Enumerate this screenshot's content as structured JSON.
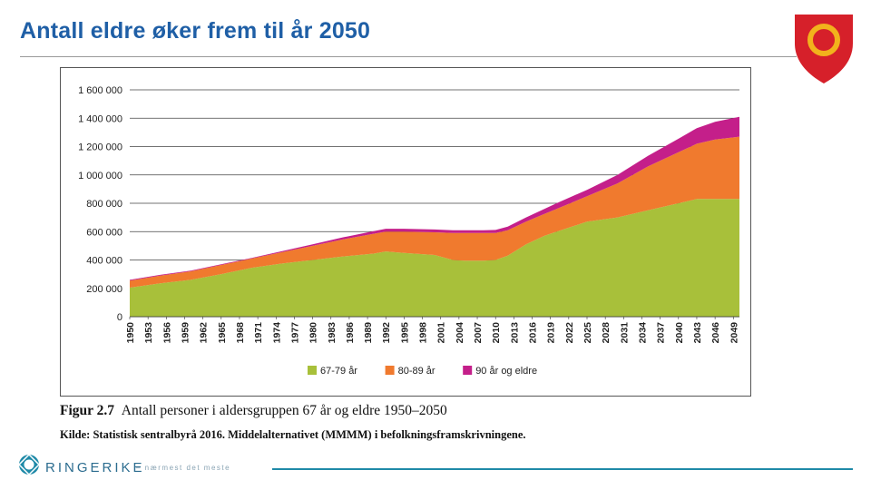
{
  "slide": {
    "title": "Antall eldre øker frem til år 2050",
    "caption_label": "Figur 2.7",
    "caption_text": "Antall personer i aldersgruppen 67 år og eldre 1950–2050",
    "source": "Kilde: Statistisk sentralbyrå 2016. Middelalternativet (MMMM) i befolkningsframskrivningene.",
    "footer_brand": "RINGERIKE",
    "footer_tagline": "– nærmest det meste"
  },
  "colors": {
    "title": "#1f5fa6",
    "crest_red": "#d6202a",
    "crest_gold": "#f2b21c",
    "footer_accent": "#1f8aa8"
  },
  "chart_data": {
    "type": "area",
    "stacked": true,
    "title": "",
    "xlabel": "",
    "ylabel": "",
    "ylim": [
      0,
      1600000
    ],
    "yticks": [
      0,
      200000,
      400000,
      600000,
      800000,
      1000000,
      1200000,
      1400000,
      1600000
    ],
    "ytick_labels": [
      "0",
      "200 000",
      "400 000",
      "600 000",
      "800 000",
      "1 000 000",
      "1 200 000",
      "1 400 000",
      "1 600 000"
    ],
    "grid": true,
    "legend_position": "bottom-center",
    "x_tick_labels": [
      "1950",
      "1953",
      "1956",
      "1959",
      "1962",
      "1965",
      "1968",
      "1971",
      "1974",
      "1977",
      "1980",
      "1983",
      "1986",
      "1989",
      "1992",
      "1995",
      "1998",
      "2001",
      "2004",
      "2007",
      "2010",
      "2013",
      "2016",
      "2019",
      "2022",
      "2025",
      "2028",
      "2031",
      "2034",
      "2037",
      "2040",
      "2043",
      "2046",
      "2049"
    ],
    "x": [
      1950,
      1955,
      1960,
      1965,
      1970,
      1975,
      1980,
      1985,
      1990,
      1992,
      1995,
      2000,
      2003,
      2005,
      2008,
      2010,
      2012,
      2015,
      2018,
      2020,
      2025,
      2030,
      2035,
      2040,
      2043,
      2046,
      2050
    ],
    "series": [
      {
        "name": "67-79 år",
        "color": "#a8c03a",
        "values": [
          205000,
          235000,
          260000,
          300000,
          345000,
          375000,
          400000,
          425000,
          445000,
          460000,
          450000,
          435000,
          400000,
          395000,
          395000,
          400000,
          430000,
          510000,
          570000,
          600000,
          670000,
          700000,
          750000,
          800000,
          830000,
          830000,
          830000
        ]
      },
      {
        "name": "80-89 år",
        "color": "#f07a2e",
        "values": [
          50000,
          55000,
          60000,
          65000,
          65000,
          80000,
          100000,
          120000,
          140000,
          140000,
          150000,
          160000,
          190000,
          195000,
          195000,
          190000,
          180000,
          160000,
          155000,
          160000,
          180000,
          240000,
          310000,
          360000,
          390000,
          420000,
          440000
        ]
      },
      {
        "name": "90 år og eldre",
        "color": "#c41f8a",
        "values": [
          5000,
          5000,
          5000,
          5000,
          5000,
          8000,
          10000,
          15000,
          18000,
          20000,
          20000,
          20000,
          20000,
          20000,
          20000,
          22000,
          25000,
          30000,
          35000,
          40000,
          45000,
          60000,
          75000,
          95000,
          110000,
          125000,
          140000
        ]
      }
    ]
  }
}
